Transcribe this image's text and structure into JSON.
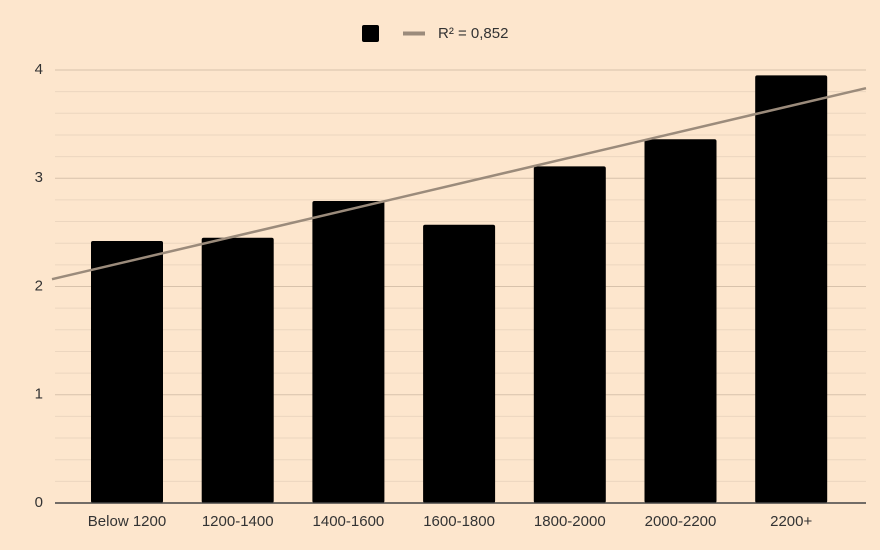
{
  "chart_data": {
    "type": "bar",
    "categories": [
      "Below 1200",
      "1200-1400",
      "1400-1600",
      "1600-1800",
      "1800-2000",
      "2000-2200",
      "2200+"
    ],
    "series": [
      {
        "color": "#000000",
        "values": [
          2.42,
          2.45,
          2.79,
          2.57,
          3.11,
          3.36,
          3.95
        ]
      }
    ],
    "trendline": {
      "name": "R² = 0,852",
      "color": "#9b8b7b",
      "values": [
        2.23,
        3.67
      ]
    },
    "ylim": [
      0,
      4
    ],
    "yticks": [
      0,
      1,
      2,
      3,
      4
    ],
    "grid": true,
    "legend": "top"
  }
}
